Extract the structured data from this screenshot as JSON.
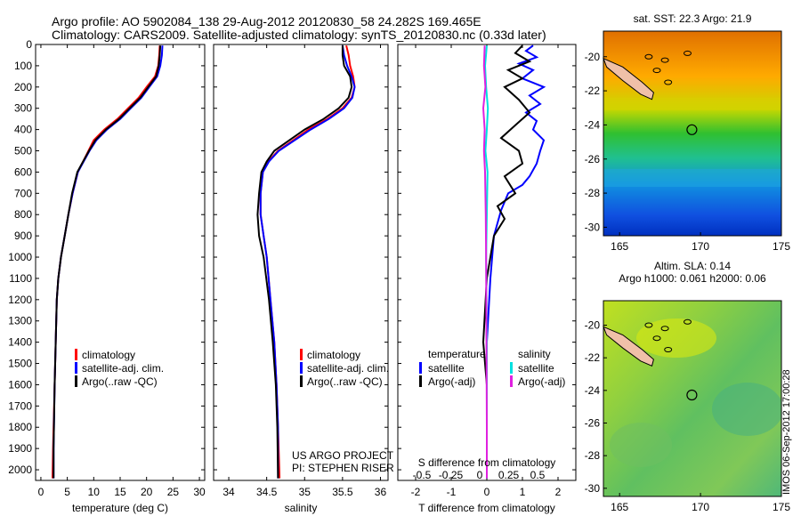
{
  "header": {
    "line1": "Argo profile: AO 5902084_138 29-Aug-2012 20120830_58 24.282S 169.465E",
    "line2": "Climatology: CARS2009. Satellite-adjusted climatology: synTS_20120830.nc (0.33d later)"
  },
  "footer": {
    "stamp": "IMOS 06-Sep-2012 17:00:28"
  },
  "colors": {
    "climatology": "#ff0000",
    "satellite": "#0000ff",
    "argo": "#000000",
    "satellite_salinity": "#00e0e0",
    "argo_salinity": "#e020e0",
    "land": "#f0c0a8"
  },
  "chart_data": [
    {
      "type": "line",
      "id": "temperature",
      "xlabel": "temperature (deg C)",
      "ylabel": "",
      "xlim": [
        -1,
        31
      ],
      "ylim": [
        0,
        2050
      ],
      "xticks": [
        0,
        5,
        10,
        15,
        20,
        25,
        30
      ],
      "yticks": [
        0,
        100,
        200,
        300,
        400,
        500,
        600,
        700,
        800,
        900,
        1000,
        1100,
        1200,
        1300,
        1400,
        1500,
        1600,
        1700,
        1800,
        1900,
        2000
      ],
      "legend": [
        "climatology",
        "satellite-adj. clim.",
        "Argo(..raw -QC)"
      ],
      "legend_position": "lower-center",
      "series": [
        {
          "name": "climatology",
          "color": "#ff0000",
          "x": [
            22.5,
            22.4,
            22.2,
            21.6,
            20.0,
            18.5,
            16.5,
            14.5,
            12.0,
            10.0,
            9.0,
            8.0,
            7.0,
            6.0,
            5.2,
            4.5,
            3.8,
            3.3,
            3.0,
            2.8,
            2.6,
            2.3,
            2.2
          ],
          "y": [
            5,
            50,
            100,
            150,
            200,
            250,
            300,
            350,
            400,
            450,
            500,
            550,
            600,
            700,
            800,
            900,
            1000,
            1100,
            1200,
            1400,
            1600,
            1900,
            2040
          ]
        },
        {
          "name": "satellite-adj. clim.",
          "color": "#0000ff",
          "x": [
            23.0,
            22.9,
            22.6,
            22.0,
            20.5,
            19.0,
            17.0,
            15.0,
            12.5,
            10.5,
            9.2,
            8.1,
            7.0,
            6.0,
            5.2,
            4.5,
            3.8,
            3.3,
            3.0,
            2.8,
            2.6,
            2.4,
            2.4
          ],
          "y": [
            5,
            50,
            100,
            150,
            200,
            250,
            300,
            350,
            400,
            450,
            500,
            550,
            600,
            700,
            800,
            900,
            1000,
            1100,
            1200,
            1400,
            1600,
            1900,
            2040
          ]
        },
        {
          "name": "Argo(..raw -QC)",
          "color": "#000000",
          "x": [
            22.6,
            22.5,
            22.3,
            21.8,
            20.3,
            18.8,
            16.8,
            14.8,
            12.3,
            10.3,
            9.1,
            8.0,
            6.9,
            5.9,
            5.2,
            4.5,
            3.8,
            3.3,
            3.0,
            2.8,
            2.6,
            2.4,
            2.4
          ],
          "y": [
            5,
            50,
            100,
            150,
            200,
            250,
            300,
            350,
            400,
            450,
            500,
            550,
            600,
            700,
            800,
            900,
            1000,
            1100,
            1200,
            1400,
            1600,
            1900,
            2040
          ]
        }
      ]
    },
    {
      "type": "line",
      "id": "salinity",
      "xlabel": "salinity",
      "ylabel": "",
      "xlim": [
        33.8,
        36.1
      ],
      "ylim": [
        0,
        2050
      ],
      "xticks": [
        34,
        34.5,
        35,
        35.5,
        36
      ],
      "legend": [
        "climatology",
        "satellite-adj. clim.",
        "Argo(..raw -QC)"
      ],
      "legend_position": "lower-center",
      "annotations": [
        "US ARGO PROJECT",
        "PI: STEPHEN RISER"
      ],
      "series": [
        {
          "name": "climatology",
          "color": "#ff0000",
          "x": [
            35.55,
            35.58,
            35.6,
            35.64,
            35.66,
            35.62,
            35.5,
            35.3,
            35.05,
            34.85,
            34.65,
            34.52,
            34.45,
            34.42,
            34.42,
            34.46,
            34.5,
            34.55,
            34.6,
            34.63,
            34.65,
            34.67
          ],
          "y": [
            5,
            50,
            100,
            150,
            200,
            250,
            300,
            350,
            400,
            450,
            500,
            550,
            600,
            700,
            800,
            900,
            1000,
            1200,
            1400,
            1600,
            1800,
            2040
          ]
        },
        {
          "name": "satellite-adj. clim.",
          "color": "#0000ff",
          "x": [
            35.5,
            35.52,
            35.56,
            35.62,
            35.66,
            35.63,
            35.52,
            35.32,
            35.08,
            34.87,
            34.66,
            34.53,
            34.45,
            34.42,
            34.42,
            34.46,
            34.5,
            34.55,
            34.6,
            34.63,
            34.65,
            34.65
          ],
          "y": [
            5,
            50,
            100,
            150,
            200,
            250,
            300,
            350,
            400,
            450,
            500,
            550,
            600,
            700,
            800,
            900,
            1000,
            1200,
            1400,
            1600,
            1800,
            2040
          ]
        },
        {
          "name": "Argo(..raw -QC)",
          "color": "#000000",
          "x": [
            35.5,
            35.5,
            35.52,
            35.6,
            35.62,
            35.58,
            35.45,
            35.25,
            35.0,
            34.8,
            34.6,
            34.5,
            34.43,
            34.4,
            34.38,
            34.4,
            34.46,
            34.53,
            34.58,
            34.62,
            34.64,
            34.65
          ],
          "y": [
            5,
            50,
            100,
            150,
            200,
            250,
            300,
            350,
            400,
            450,
            500,
            550,
            600,
            700,
            800,
            900,
            1000,
            1200,
            1400,
            1600,
            1800,
            2040
          ]
        }
      ]
    },
    {
      "type": "line",
      "id": "difference",
      "xlabel": "T difference from climatology",
      "xlabel_top": "S difference from climatology",
      "xlim": [
        -2.5,
        2.5
      ],
      "ylim": [
        0,
        2050
      ],
      "xticks": [
        -2,
        -1,
        0,
        1,
        2
      ],
      "xticks_labels": [
        "-2",
        "-1",
        "0",
        "1",
        "2"
      ],
      "sticks_labels": [
        "-0.5",
        "-0.25",
        "0",
        "0.25",
        "0.5"
      ],
      "legend_groups": [
        "temperature",
        "salinity"
      ],
      "legend": [
        "satellite",
        "Argo(-adj)",
        "satellite",
        "Argo(-adj)"
      ],
      "series": [
        {
          "name": "satellite",
          "group": "temperature",
          "color": "#0000ff",
          "x": [
            1.3,
            1.1,
            1.4,
            0.9,
            1.3,
            1.0,
            1.6,
            1.2,
            1.5,
            1.1,
            1.4,
            1.3,
            1.6,
            1.5,
            1.4,
            1.2,
            1.0,
            0.6,
            0.4,
            0.2,
            0.1,
            0.0,
            0.0,
            0.0
          ],
          "y": [
            5,
            30,
            60,
            90,
            120,
            160,
            200,
            240,
            280,
            320,
            360,
            400,
            450,
            500,
            560,
            620,
            660,
            700,
            780,
            900,
            1100,
            1400,
            1700,
            2040
          ]
        },
        {
          "name": "Argo(-adj)",
          "group": "temperature",
          "color": "#000000",
          "x": [
            1.0,
            0.8,
            1.2,
            0.6,
            1.0,
            0.5,
            0.9,
            1.2,
            0.8,
            0.4,
            0.9,
            1.0,
            0.5,
            0.8,
            0.3,
            0.5,
            0.2,
            0.0,
            -0.1,
            0.0,
            0.0,
            0.0
          ],
          "y": [
            5,
            40,
            80,
            120,
            160,
            200,
            260,
            320,
            380,
            440,
            500,
            560,
            620,
            700,
            760,
            820,
            900,
            1100,
            1400,
            1600,
            1800,
            2040
          ]
        },
        {
          "name": "satellite",
          "group": "salinity",
          "color": "#00e0e0",
          "x": [
            0.0,
            -0.05,
            -0.02,
            0.03,
            0.0,
            -0.04,
            0.02,
            0.0,
            -0.02,
            0.0,
            0.0,
            0.0
          ],
          "y": [
            5,
            100,
            200,
            300,
            400,
            500,
            600,
            800,
            1000,
            1400,
            1800,
            2040
          ]
        },
        {
          "name": "Argo(-adj)",
          "group": "salinity",
          "color": "#e020e0",
          "x": [
            -0.06,
            -0.08,
            -0.04,
            -0.1,
            -0.06,
            -0.08,
            -0.05,
            -0.03,
            -0.02,
            -0.01,
            0.0,
            0.0
          ],
          "y": [
            5,
            100,
            200,
            300,
            400,
            500,
            600,
            800,
            1000,
            1400,
            1800,
            2040
          ]
        }
      ]
    },
    {
      "type": "heatmap",
      "id": "sst-map",
      "title": "sat. SST: 22.3 Argo: 21.9",
      "xlim": [
        164,
        175
      ],
      "ylim": [
        -30.5,
        -18.5
      ],
      "xticks": [
        165,
        170,
        175
      ],
      "yticks": [
        -20,
        -22,
        -24,
        -26,
        -28,
        -30
      ],
      "marker": {
        "lon": 169.465,
        "lat": -24.282
      }
    },
    {
      "type": "heatmap",
      "id": "sla-map",
      "title": "Altim. SLA: 0.14",
      "subtitle": "Argo h1000: 0.061 h2000: 0.06",
      "xlim": [
        164,
        175
      ],
      "ylim": [
        -30.5,
        -18.5
      ],
      "xticks": [
        165,
        170,
        175
      ],
      "yticks": [
        -20,
        -22,
        -24,
        -26,
        -28,
        -30
      ],
      "marker": {
        "lon": 169.465,
        "lat": -24.282
      }
    }
  ]
}
